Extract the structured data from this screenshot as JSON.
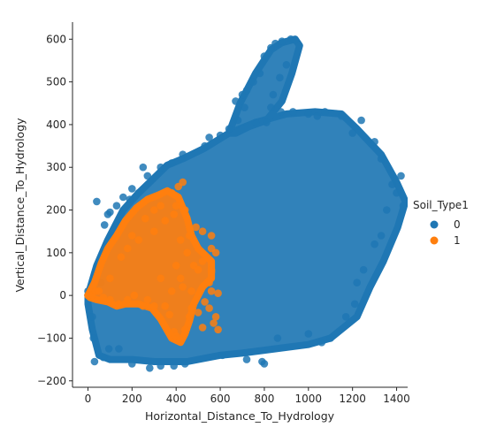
{
  "chart_data": {
    "type": "scatter",
    "title": "",
    "xlabel": "Horizontal_Distance_To_Hydrology",
    "ylabel": "Vertical_Distance_To_Hydrology",
    "xlim": [
      -70,
      1450
    ],
    "ylim": [
      -215,
      640
    ],
    "x_ticks": [
      0,
      200,
      400,
      600,
      800,
      1000,
      1200,
      1400
    ],
    "y_ticks": [
      -200,
      -100,
      0,
      100,
      200,
      300,
      400,
      500,
      600
    ],
    "grid": false,
    "legend": {
      "title": "Soil_Type1",
      "placement": "right",
      "entries": [
        "0",
        "1"
      ]
    },
    "series": [
      {
        "name": "0",
        "color": "#1f77b4",
        "region_outline": [
          [
            0,
            0
          ],
          [
            40,
            70
          ],
          [
            90,
            130
          ],
          [
            160,
            200
          ],
          [
            230,
            240
          ],
          [
            290,
            270
          ],
          [
            360,
            305
          ],
          [
            430,
            320
          ],
          [
            530,
            345
          ],
          [
            640,
            380
          ],
          [
            760,
            405
          ],
          [
            900,
            425
          ],
          [
            1030,
            430
          ],
          [
            1150,
            425
          ],
          [
            1220,
            390
          ],
          [
            1330,
            330
          ],
          [
            1400,
            265
          ],
          [
            1440,
            220
          ],
          [
            1405,
            160
          ],
          [
            1340,
            80
          ],
          [
            1280,
            20
          ],
          [
            1220,
            -50
          ],
          [
            1100,
            -100
          ],
          [
            1000,
            -115
          ],
          [
            850,
            -125
          ],
          [
            700,
            -135
          ],
          [
            600,
            -140
          ],
          [
            450,
            -155
          ],
          [
            300,
            -155
          ],
          [
            200,
            -150
          ],
          [
            100,
            -150
          ],
          [
            50,
            -140
          ],
          [
            20,
            -80
          ],
          [
            0,
            -20
          ]
        ],
        "spike_outline": [
          [
            640,
            380
          ],
          [
            690,
            450
          ],
          [
            760,
            520
          ],
          [
            830,
            575
          ],
          [
            880,
            592
          ],
          [
            940,
            600
          ],
          [
            960,
            585
          ],
          [
            925,
            520
          ],
          [
            880,
            455
          ],
          [
            810,
            410
          ],
          [
            730,
            395
          ],
          [
            670,
            380
          ]
        ],
        "points": [
          [
            0,
            0
          ],
          [
            40,
            220
          ],
          [
            20,
            -50
          ],
          [
            25,
            -100
          ],
          [
            30,
            -155
          ],
          [
            70,
            -145
          ],
          [
            95,
            -125
          ],
          [
            140,
            -125
          ],
          [
            200,
            -160
          ],
          [
            280,
            -170
          ],
          [
            330,
            -165
          ],
          [
            390,
            -165
          ],
          [
            440,
            -160
          ],
          [
            610,
            -140
          ],
          [
            720,
            -150
          ],
          [
            790,
            -155
          ],
          [
            800,
            -160
          ],
          [
            860,
            -100
          ],
          [
            1000,
            -90
          ],
          [
            1060,
            -110
          ],
          [
            1100,
            -100
          ],
          [
            1170,
            -50
          ],
          [
            1210,
            -20
          ],
          [
            1220,
            30
          ],
          [
            1250,
            60
          ],
          [
            1300,
            120
          ],
          [
            1330,
            140
          ],
          [
            1355,
            200
          ],
          [
            1380,
            260
          ],
          [
            1400,
            240
          ],
          [
            1430,
            210
          ],
          [
            1420,
            280
          ],
          [
            1330,
            320
          ],
          [
            1300,
            360
          ],
          [
            1240,
            410
          ],
          [
            1200,
            380
          ],
          [
            1150,
            420
          ],
          [
            1075,
            430
          ],
          [
            1000,
            425
          ],
          [
            930,
            430
          ],
          [
            875,
            430
          ],
          [
            830,
            440
          ],
          [
            810,
            405
          ],
          [
            760,
            405
          ],
          [
            680,
            410
          ],
          [
            640,
            390
          ],
          [
            670,
            455
          ],
          [
            700,
            470
          ],
          [
            720,
            480
          ],
          [
            750,
            500
          ],
          [
            780,
            520
          ],
          [
            800,
            560
          ],
          [
            830,
            580
          ],
          [
            850,
            590
          ],
          [
            880,
            595
          ],
          [
            920,
            600
          ],
          [
            940,
            598
          ],
          [
            900,
            540
          ],
          [
            870,
            510
          ],
          [
            840,
            470
          ],
          [
            710,
            440
          ],
          [
            530,
            350
          ],
          [
            430,
            330
          ],
          [
            380,
            310
          ],
          [
            330,
            300
          ],
          [
            270,
            280
          ],
          [
            250,
            300
          ],
          [
            230,
            240
          ],
          [
            190,
            225
          ],
          [
            140,
            175
          ],
          [
            110,
            140
          ],
          [
            80,
            100
          ],
          [
            40,
            60
          ],
          [
            25,
            40
          ],
          [
            15,
            20
          ],
          [
            0,
            10
          ],
          [
            60,
            30
          ],
          [
            75,
            165
          ],
          [
            90,
            190
          ],
          [
            100,
            195
          ],
          [
            130,
            210
          ],
          [
            160,
            230
          ],
          [
            200,
            250
          ],
          [
            550,
            370
          ],
          [
            600,
            375
          ],
          [
            1040,
            420
          ]
        ]
      },
      {
        "name": "1",
        "color": "#ff7f0e",
        "region_outline": [
          [
            0,
            0
          ],
          [
            30,
            30
          ],
          [
            60,
            75
          ],
          [
            90,
            110
          ],
          [
            130,
            140
          ],
          [
            170,
            175
          ],
          [
            220,
            205
          ],
          [
            270,
            225
          ],
          [
            320,
            235
          ],
          [
            360,
            245
          ],
          [
            410,
            230
          ],
          [
            450,
            180
          ],
          [
            470,
            140
          ],
          [
            500,
            110
          ],
          [
            560,
            80
          ],
          [
            560,
            40
          ],
          [
            520,
            20
          ],
          [
            480,
            -20
          ],
          [
            460,
            -60
          ],
          [
            440,
            -90
          ],
          [
            420,
            -110
          ],
          [
            380,
            -100
          ],
          [
            330,
            -55
          ],
          [
            290,
            -30
          ],
          [
            230,
            -20
          ],
          [
            170,
            -20
          ],
          [
            130,
            -25
          ],
          [
            90,
            -15
          ],
          [
            40,
            -10
          ],
          [
            10,
            -5
          ]
        ],
        "points": [
          [
            0,
            0
          ],
          [
            8,
            0
          ],
          [
            15,
            -2
          ],
          [
            20,
            2
          ],
          [
            35,
            10
          ],
          [
            380,
            240
          ],
          [
            410,
            255
          ],
          [
            430,
            265
          ],
          [
            400,
            210
          ],
          [
            390,
            190
          ],
          [
            440,
            200
          ],
          [
            490,
            160
          ],
          [
            520,
            150
          ],
          [
            560,
            140
          ],
          [
            500,
            110
          ],
          [
            560,
            110
          ],
          [
            580,
            100
          ],
          [
            560,
            60
          ],
          [
            560,
            55
          ],
          [
            550,
            30
          ],
          [
            560,
            10
          ],
          [
            590,
            5
          ],
          [
            530,
            -15
          ],
          [
            550,
            -30
          ],
          [
            580,
            -50
          ],
          [
            570,
            -65
          ],
          [
            590,
            -80
          ],
          [
            520,
            -75
          ],
          [
            500,
            -40
          ],
          [
            470,
            -30
          ],
          [
            460,
            -50
          ],
          [
            440,
            -80
          ],
          [
            420,
            -105
          ],
          [
            390,
            -85
          ],
          [
            400,
            -95
          ],
          [
            370,
            -45
          ],
          [
            350,
            -25
          ],
          [
            300,
            -25
          ],
          [
            250,
            -25
          ],
          [
            270,
            -10
          ],
          [
            210,
            0
          ],
          [
            180,
            -10
          ],
          [
            140,
            -20
          ],
          [
            100,
            -10
          ],
          [
            70,
            -5
          ],
          [
            50,
            10
          ],
          [
            100,
            40
          ],
          [
            150,
            90
          ],
          [
            200,
            140
          ],
          [
            260,
            180
          ],
          [
            300,
            200
          ],
          [
            330,
            210
          ],
          [
            350,
            175
          ],
          [
            300,
            150
          ],
          [
            230,
            130
          ],
          [
            180,
            110
          ],
          [
            400,
            70
          ],
          [
            420,
            40
          ],
          [
            430,
            20
          ],
          [
            380,
            10
          ],
          [
            330,
            40
          ],
          [
            480,
            70
          ],
          [
            450,
            100
          ],
          [
            420,
            130
          ],
          [
            460,
            140
          ],
          [
            500,
            60
          ],
          [
            470,
            10
          ],
          [
            520,
            80
          ]
        ]
      }
    ]
  }
}
